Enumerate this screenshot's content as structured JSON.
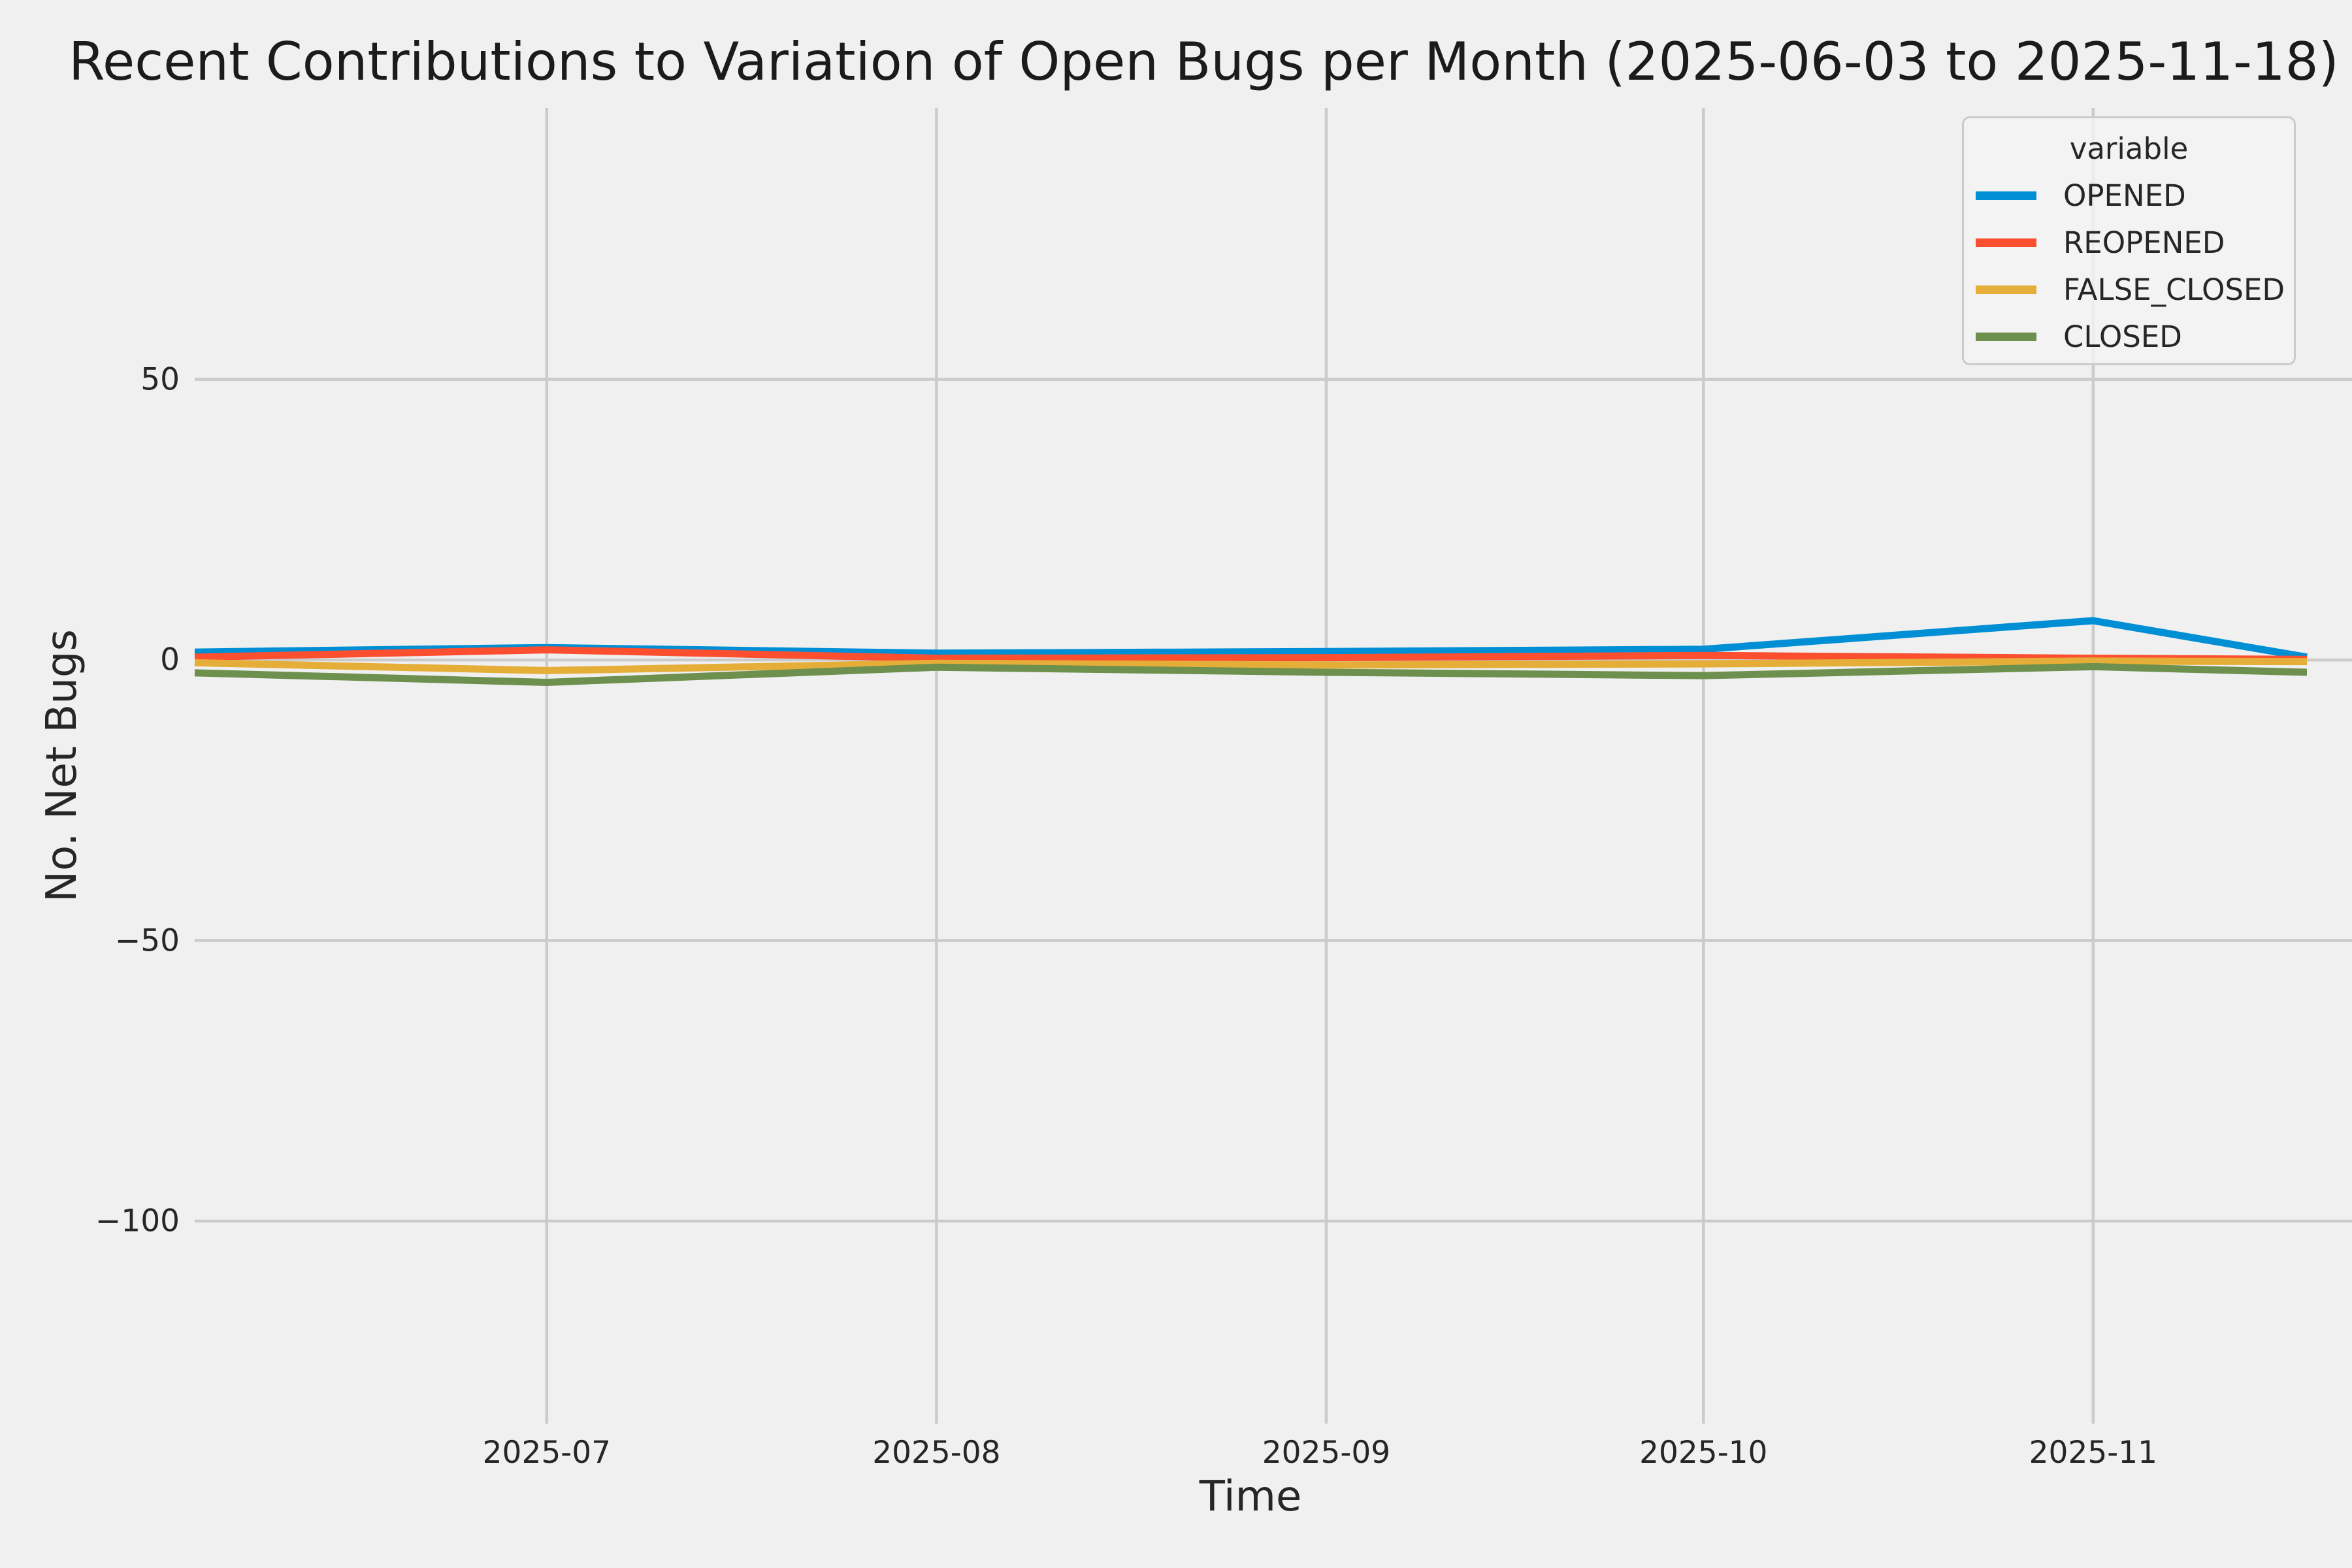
{
  "figure": {
    "background_color": "#f0f0f0",
    "grid_color": "#cbcbcb",
    "text_color": "#262626"
  },
  "chart_data": {
    "type": "line",
    "title": "Recent Contributions to Variation of Open Bugs per Month (2025-06-03 to 2025-11-18)",
    "xlabel": "Time",
    "ylabel": "No. Net Bugs",
    "legend_title": "variable",
    "legend_position": "upper right",
    "grid": true,
    "x_dates": [
      "2025-06-03",
      "2025-07-01",
      "2025-08-01",
      "2025-09-01",
      "2025-10-01",
      "2025-11-01",
      "2025-11-18"
    ],
    "x_days": [
      0,
      28,
      59,
      90,
      120,
      151,
      168
    ],
    "xlim_days": [
      0,
      168
    ],
    "ylim": [
      -136.1,
      98.4
    ],
    "x_ticks": [
      {
        "label": "2025-07",
        "day": 28
      },
      {
        "label": "2025-08",
        "day": 59
      },
      {
        "label": "2025-09",
        "day": 90
      },
      {
        "label": "2025-10",
        "day": 120
      },
      {
        "label": "2025-11",
        "day": 151
      }
    ],
    "y_ticks": [
      {
        "label": "50",
        "value": 50
      },
      {
        "label": "0",
        "value": 0
      },
      {
        "label": "−50",
        "value": -50
      },
      {
        "label": "−100",
        "value": -100
      }
    ],
    "series": [
      {
        "name": "OPENED",
        "color": "#008fd5",
        "values": [
          1.4,
          2.2,
          1.2,
          1.5,
          1.9,
          7.0,
          0.5
        ]
      },
      {
        "name": "REOPENED",
        "color": "#fc4f30",
        "values": [
          0.5,
          1.8,
          0.3,
          0.4,
          0.8,
          0.3,
          0.1
        ]
      },
      {
        "name": "FALSE_CLOSED",
        "color": "#e5ae38",
        "values": [
          -0.5,
          -1.9,
          -0.6,
          -0.9,
          -0.7,
          -0.2,
          -0.3
        ]
      },
      {
        "name": "CLOSED",
        "color": "#6d904f",
        "values": [
          -2.3,
          -4.0,
          -1.3,
          -2.2,
          -2.8,
          -1.2,
          -2.2
        ]
      }
    ]
  }
}
